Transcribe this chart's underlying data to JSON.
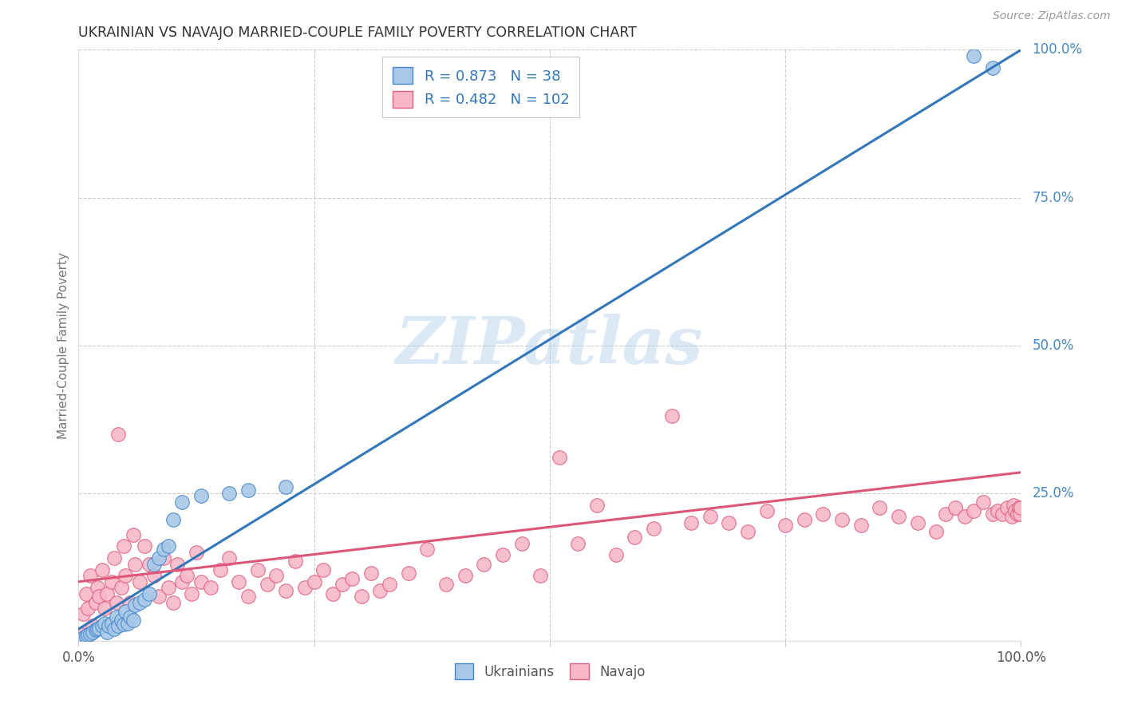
{
  "title": "UKRAINIAN VS NAVAJO MARRIED-COUPLE FAMILY POVERTY CORRELATION CHART",
  "source": "Source: ZipAtlas.com",
  "ylabel": "Married-Couple Family Poverty",
  "xlim": [
    0,
    1
  ],
  "ylim": [
    0,
    1
  ],
  "watermark": "ZIPatlas",
  "legend_blue_label": "Ukrainians",
  "legend_pink_label": "Navajo",
  "blue_R": "0.873",
  "blue_N": "38",
  "pink_R": "0.482",
  "pink_N": "102",
  "blue_fill_color": "#a8c8e8",
  "pink_fill_color": "#f8b8c8",
  "blue_edge_color": "#4488cc",
  "pink_edge_color": "#e06080",
  "blue_line_color": "#3377bb",
  "pink_line_color": "#dd5577",
  "background_color": "#ffffff",
  "grid_color": "#cccccc",
  "title_color": "#333333",
  "axis_label_color": "#777777",
  "right_tick_color": "#4488cc",
  "ytick_vals_right": [
    1.0,
    0.75,
    0.5,
    0.25
  ],
  "ytick_labels_right": [
    "100.0%",
    "75.0%",
    "50.0%",
    "25.0%"
  ],
  "blue_line_x": [
    0.0,
    1.0
  ],
  "blue_line_y": [
    0.02,
    1.0
  ],
  "pink_line_x": [
    0.0,
    1.0
  ],
  "pink_line_y": [
    0.1,
    0.285
  ],
  "blue_scatter_x": [
    0.005,
    0.008,
    0.01,
    0.012,
    0.015,
    0.018,
    0.02,
    0.022,
    0.025,
    0.028,
    0.03,
    0.032,
    0.035,
    0.038,
    0.04,
    0.042,
    0.045,
    0.048,
    0.05,
    0.052,
    0.055,
    0.058,
    0.06,
    0.065,
    0.07,
    0.075,
    0.08,
    0.085,
    0.09,
    0.095,
    0.1,
    0.11,
    0.13,
    0.16,
    0.18,
    0.22,
    0.95,
    0.97
  ],
  "blue_scatter_y": [
    0.005,
    0.008,
    0.01,
    0.012,
    0.015,
    0.018,
    0.02,
    0.022,
    0.025,
    0.03,
    0.015,
    0.025,
    0.03,
    0.02,
    0.04,
    0.025,
    0.035,
    0.028,
    0.05,
    0.03,
    0.04,
    0.035,
    0.06,
    0.065,
    0.07,
    0.08,
    0.13,
    0.14,
    0.155,
    0.16,
    0.205,
    0.235,
    0.245,
    0.25,
    0.255,
    0.26,
    0.99,
    0.97
  ],
  "pink_scatter_x": [
    0.005,
    0.008,
    0.01,
    0.012,
    0.015,
    0.018,
    0.02,
    0.022,
    0.025,
    0.028,
    0.03,
    0.035,
    0.038,
    0.04,
    0.042,
    0.045,
    0.048,
    0.05,
    0.055,
    0.058,
    0.06,
    0.065,
    0.07,
    0.075,
    0.08,
    0.085,
    0.09,
    0.095,
    0.1,
    0.105,
    0.11,
    0.115,
    0.12,
    0.125,
    0.13,
    0.14,
    0.15,
    0.16,
    0.17,
    0.18,
    0.19,
    0.2,
    0.21,
    0.22,
    0.23,
    0.24,
    0.25,
    0.26,
    0.27,
    0.28,
    0.29,
    0.3,
    0.31,
    0.32,
    0.33,
    0.35,
    0.37,
    0.39,
    0.41,
    0.43,
    0.45,
    0.47,
    0.49,
    0.51,
    0.53,
    0.55,
    0.57,
    0.59,
    0.61,
    0.63,
    0.65,
    0.67,
    0.69,
    0.71,
    0.73,
    0.75,
    0.77,
    0.79,
    0.81,
    0.83,
    0.85,
    0.87,
    0.89,
    0.91,
    0.92,
    0.93,
    0.94,
    0.95,
    0.96,
    0.97,
    0.975,
    0.98,
    0.985,
    0.99,
    0.992,
    0.994,
    0.996,
    0.998,
    0.999,
    1.0,
    0.002,
    0.004
  ],
  "pink_scatter_y": [
    0.045,
    0.08,
    0.055,
    0.11,
    0.025,
    0.065,
    0.09,
    0.075,
    0.12,
    0.055,
    0.08,
    0.1,
    0.14,
    0.065,
    0.35,
    0.09,
    0.16,
    0.11,
    0.065,
    0.18,
    0.13,
    0.1,
    0.16,
    0.13,
    0.11,
    0.075,
    0.14,
    0.09,
    0.065,
    0.13,
    0.1,
    0.11,
    0.08,
    0.15,
    0.1,
    0.09,
    0.12,
    0.14,
    0.1,
    0.075,
    0.12,
    0.095,
    0.11,
    0.085,
    0.135,
    0.09,
    0.1,
    0.12,
    0.08,
    0.095,
    0.105,
    0.075,
    0.115,
    0.085,
    0.095,
    0.115,
    0.155,
    0.095,
    0.11,
    0.13,
    0.145,
    0.165,
    0.11,
    0.31,
    0.165,
    0.23,
    0.145,
    0.175,
    0.19,
    0.38,
    0.2,
    0.21,
    0.2,
    0.185,
    0.22,
    0.195,
    0.205,
    0.215,
    0.205,
    0.195,
    0.225,
    0.21,
    0.2,
    0.185,
    0.215,
    0.225,
    0.21,
    0.22,
    0.235,
    0.215,
    0.22,
    0.215,
    0.225,
    0.21,
    0.23,
    0.22,
    0.215,
    0.225,
    0.215,
    0.225,
    0.01,
    0.01
  ]
}
